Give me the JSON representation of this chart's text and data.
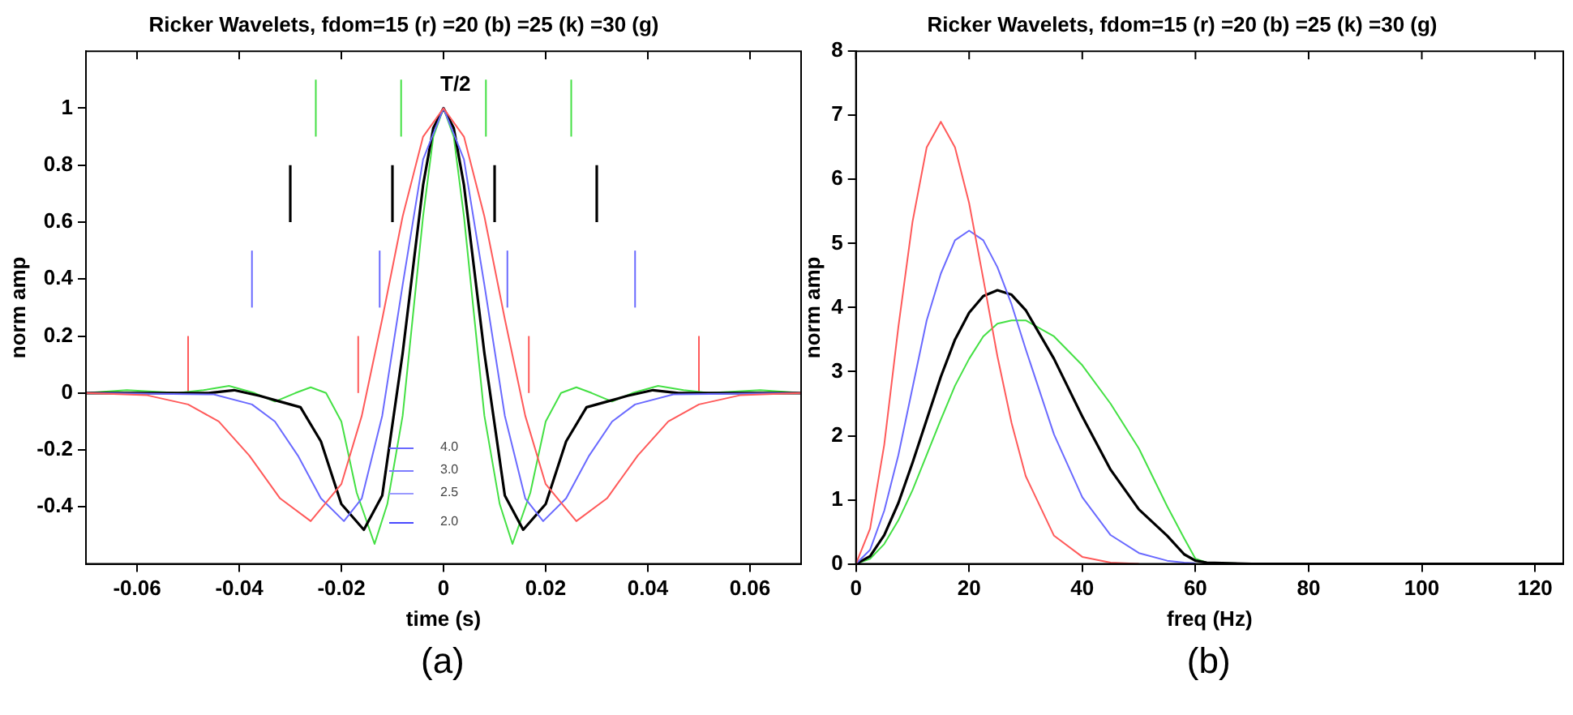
{
  "chart_data": [
    {
      "type": "line",
      "title": "Ricker Wavelets, fdom=15 (r) =20 (b) =25 (k) =30 (g)",
      "xlabel": "time (s)",
      "ylabel": "norm amp",
      "xlim": [
        -0.07,
        0.07
      ],
      "xticks": [
        -0.06,
        -0.04,
        -0.02,
        0,
        0.02,
        0.04,
        0.06
      ],
      "ylim": [
        -0.6,
        1.2
      ],
      "yticks": [
        -0.4,
        -0.2,
        0,
        0.2,
        0.4,
        0.6,
        0.8,
        1
      ],
      "grid": false,
      "legend": false,
      "marker": "none",
      "line_style": "solid",
      "annotations": [
        "T/2",
        "4.0",
        "3.0",
        "2.5",
        "2.0",
        "(a)"
      ],
      "series": [
        {
          "color": "#ff5a5a",
          "x": [
            -0.07,
            -0.058,
            -0.05,
            -0.044,
            -0.038,
            -0.032,
            -0.026,
            -0.02,
            -0.016,
            -0.012,
            -0.008,
            -0.004,
            0,
            0.004,
            0.008,
            0.012,
            0.016,
            0.02,
            0.026,
            0.032,
            0.038,
            0.044,
            0.05,
            0.058,
            0.07
          ],
          "values": [
            0,
            -0.008,
            -0.04,
            -0.1,
            -0.22,
            -0.37,
            -0.45,
            -0.32,
            -0.08,
            0.26,
            0.62,
            0.9,
            1,
            0.9,
            0.62,
            0.26,
            -0.08,
            -0.32,
            -0.45,
            -0.37,
            -0.22,
            -0.1,
            -0.04,
            -0.008,
            0
          ]
        },
        {
          "color": "#6a6aff",
          "x": [
            -0.07,
            -0.045,
            -0.0375,
            -0.033,
            -0.0285,
            -0.024,
            -0.0195,
            -0.016,
            -0.012,
            -0.008,
            -0.004,
            0,
            0.004,
            0.008,
            0.012,
            0.016,
            0.0195,
            0.024,
            0.0285,
            0.033,
            0.0375,
            0.045,
            0.07
          ],
          "values": [
            0,
            -0.005,
            -0.04,
            -0.1,
            -0.22,
            -0.37,
            -0.45,
            -0.37,
            -0.08,
            0.38,
            0.82,
            1,
            0.82,
            0.38,
            -0.08,
            -0.37,
            -0.45,
            -0.37,
            -0.22,
            -0.1,
            -0.04,
            -0.005,
            0
          ]
        },
        {
          "color": "#000000",
          "x": [
            -0.07,
            -0.06,
            -0.046,
            -0.041,
            -0.036,
            -0.032,
            -0.028,
            -0.024,
            -0.02,
            -0.0156,
            -0.012,
            -0.008,
            -0.004,
            -0.002,
            0,
            0.002,
            0.004,
            0.008,
            0.012,
            0.0156,
            0.02,
            0.024,
            0.028,
            0.032,
            0.036,
            0.041,
            0.046,
            0.06,
            0.07
          ],
          "values": [
            0,
            0,
            0,
            0.01,
            -0.01,
            -0.03,
            -0.05,
            -0.17,
            -0.39,
            -0.48,
            -0.36,
            0.14,
            0.73,
            0.93,
            1,
            0.93,
            0.73,
            0.14,
            -0.36,
            -0.48,
            -0.39,
            -0.17,
            -0.05,
            -0.03,
            -0.01,
            0.01,
            0,
            0,
            0
          ]
        },
        {
          "color": "#44e044",
          "x": [
            -0.07,
            -0.062,
            -0.052,
            -0.047,
            -0.042,
            -0.037,
            -0.033,
            -0.029,
            -0.026,
            -0.023,
            -0.02,
            -0.017,
            -0.0135,
            -0.011,
            -0.008,
            -0.004,
            -0.002,
            0,
            0.002,
            0.004,
            0.008,
            0.011,
            0.0135,
            0.017,
            0.02,
            0.023,
            0.026,
            0.029,
            0.033,
            0.037,
            0.042,
            0.047,
            0.052,
            0.062,
            0.07
          ],
          "values": [
            0,
            0.01,
            0,
            0.01,
            0.025,
            0,
            -0.03,
            0,
            0.02,
            0,
            -0.1,
            -0.35,
            -0.53,
            -0.39,
            -0.08,
            0.62,
            0.9,
            1,
            0.9,
            0.62,
            -0.08,
            -0.39,
            -0.53,
            -0.35,
            -0.1,
            0,
            0.02,
            0,
            -0.03,
            0,
            0.025,
            0.01,
            0,
            0.01,
            0
          ]
        },
        {
          "color": "#ff5a5a",
          "x": [
            -0.05,
            -0.05
          ],
          "values": [
            0,
            0.2
          ]
        },
        {
          "color": "#ff5a5a",
          "x": [
            -0.0167,
            -0.0167
          ],
          "values": [
            0,
            0.2
          ]
        },
        {
          "color": "#ff5a5a",
          "x": [
            0.0167,
            0.0167
          ],
          "values": [
            0,
            0.2
          ]
        },
        {
          "color": "#ff5a5a",
          "x": [
            0.05,
            0.05
          ],
          "values": [
            0,
            0.2
          ]
        },
        {
          "color": "#6a6aff",
          "x": [
            -0.0375,
            -0.0375
          ],
          "values": [
            0.3,
            0.5
          ]
        },
        {
          "color": "#6a6aff",
          "x": [
            -0.0125,
            -0.0125
          ],
          "values": [
            0.3,
            0.5
          ]
        },
        {
          "color": "#6a6aff",
          "x": [
            0.0125,
            0.0125
          ],
          "values": [
            0.3,
            0.5
          ]
        },
        {
          "color": "#6a6aff",
          "x": [
            0.0375,
            0.0375
          ],
          "values": [
            0.3,
            0.5
          ]
        },
        {
          "color": "#000000",
          "x": [
            -0.03,
            -0.03
          ],
          "values": [
            0.6,
            0.8
          ]
        },
        {
          "color": "#000000",
          "x": [
            -0.01,
            -0.01
          ],
          "values": [
            0.6,
            0.8
          ]
        },
        {
          "color": "#000000",
          "x": [
            0.01,
            0.01
          ],
          "values": [
            0.6,
            0.8
          ]
        },
        {
          "color": "#000000",
          "x": [
            0.03,
            0.03
          ],
          "values": [
            0.6,
            0.8
          ]
        },
        {
          "color": "#44e044",
          "x": [
            -0.025,
            -0.025
          ],
          "values": [
            0.9,
            1.1
          ]
        },
        {
          "color": "#44e044",
          "x": [
            -0.0083,
            -0.0083
          ],
          "values": [
            0.9,
            1.1
          ]
        },
        {
          "color": "#44e044",
          "x": [
            0.0083,
            0.0083
          ],
          "values": [
            0.9,
            1.1
          ]
        },
        {
          "color": "#44e044",
          "x": [
            0.025,
            0.025
          ],
          "values": [
            0.9,
            1.1
          ]
        }
      ]
    },
    {
      "type": "line",
      "title": "Ricker Wavelets, fdom=15 (r) =20 (b) =25 (k) =30 (g)",
      "xlabel": "freq (Hz)",
      "ylabel": "norm amp",
      "xlim": [
        0,
        125
      ],
      "xticks": [
        0,
        20,
        40,
        60,
        80,
        100,
        120
      ],
      "ylim": [
        0,
        8
      ],
      "yticks": [
        0,
        1,
        2,
        3,
        4,
        5,
        6,
        7,
        8
      ],
      "grid": false,
      "legend": false,
      "marker": "none",
      "line_style": "solid",
      "annotations": [
        "(b)"
      ],
      "x": [
        0,
        2.5,
        5,
        7.5,
        10,
        12.5,
        15,
        17.5,
        20,
        22.5,
        25,
        27.5,
        30,
        35,
        40,
        45,
        50,
        55,
        58,
        60,
        62,
        70,
        125
      ],
      "series": [
        {
          "color": "#ff5a5a",
          "values": [
            0,
            0.55,
            1.86,
            3.7,
            5.34,
            6.5,
            6.9,
            6.5,
            5.63,
            4.45,
            3.24,
            2.2,
            1.37,
            0.44,
            0.11,
            0.02,
            0,
            null,
            null,
            null,
            null,
            null,
            null
          ]
        },
        {
          "color": "#6a6aff",
          "values": [
            0,
            0.22,
            0.83,
            1.7,
            2.75,
            3.8,
            4.53,
            5.05,
            5.2,
            5.05,
            4.63,
            4.05,
            3.35,
            2.02,
            1.04,
            0.45,
            0.17,
            0.05,
            0.02,
            0.01,
            null,
            null,
            null
          ]
        },
        {
          "color": "#000000",
          "values": [
            0,
            0.12,
            0.45,
            0.95,
            1.58,
            2.25,
            2.92,
            3.5,
            3.92,
            4.18,
            4.27,
            4.2,
            3.96,
            3.2,
            2.3,
            1.47,
            0.85,
            0.44,
            0.15,
            0.05,
            0.02,
            0,
            0
          ]
        },
        {
          "color": "#44e044",
          "values": [
            0,
            0.08,
            0.31,
            0.68,
            1.15,
            1.7,
            2.25,
            2.78,
            3.2,
            3.55,
            3.75,
            3.8,
            3.8,
            3.55,
            3.1,
            2.5,
            1.8,
            0.9,
            0.4,
            0.08,
            0.02,
            0,
            0
          ]
        }
      ]
    }
  ]
}
